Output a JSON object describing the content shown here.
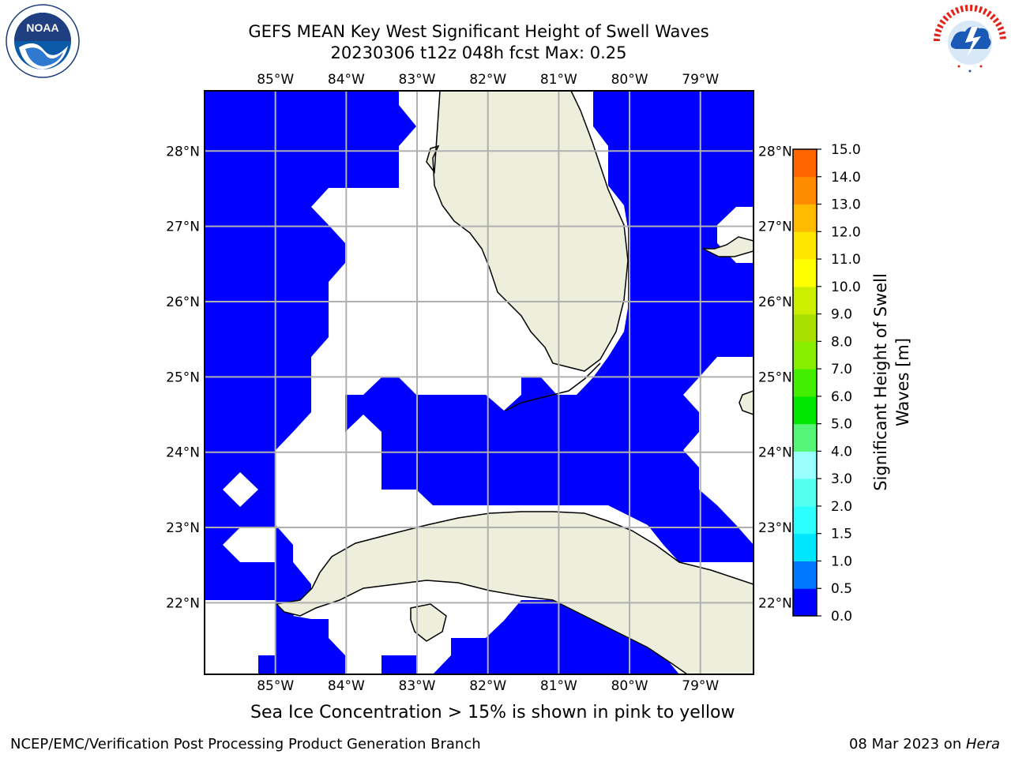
{
  "title": {
    "line1": "GEFS MEAN Key West Significant Height of Swell Waves",
    "line2": "20230306 t12z 048h fcst   Max: 0.25"
  },
  "map": {
    "lon_ticks": [
      "85°W",
      "84°W",
      "83°W",
      "82°W",
      "81°W",
      "80°W",
      "79°W"
    ],
    "lat_ticks": [
      "28°N",
      "27°N",
      "26°N",
      "25°N",
      "24°N",
      "23°N",
      "22°N"
    ],
    "lon_range": [
      -86.0,
      -78.25
    ],
    "lat_range": [
      21.05,
      28.8
    ],
    "field_color": "#0000ff",
    "land_color": "#eeeedd",
    "grid_color": "#b0b0b0"
  },
  "colorbar": {
    "label": "Significant Height of Swell Waves [m]",
    "label_line1": "Significant Height of Swell",
    "label_line2": "Waves [m]",
    "ticks": [
      "0.0",
      "0.5",
      "1.0",
      "1.5",
      "2.0",
      "3.0",
      "4.0",
      "5.0",
      "6.0",
      "7.0",
      "8.0",
      "9.0",
      "10.0",
      "11.0",
      "12.0",
      "13.0",
      "14.0",
      "15.0"
    ],
    "colors": [
      "#0000ff",
      "#0078ff",
      "#00e6ff",
      "#2bffff",
      "#55fff0",
      "#99ffff",
      "#55f577",
      "#00e600",
      "#44ee00",
      "#88ee00",
      "#aae000",
      "#ccee00",
      "#ffff00",
      "#ffe600",
      "#ffbb00",
      "#ff8c00",
      "#ff6600",
      "#ff3300",
      "#ff0000"
    ]
  },
  "sea_ice_note": "Sea Ice Concentration > 15% is shown in pink to yellow",
  "footer": {
    "left": "NCEP/EMC/Verification Post Processing Product Generation Branch",
    "right_date": "08 Mar 2023 on ",
    "right_host": "Hera"
  },
  "logos": {
    "left": "noaa-logo",
    "right": "nws-logo"
  }
}
